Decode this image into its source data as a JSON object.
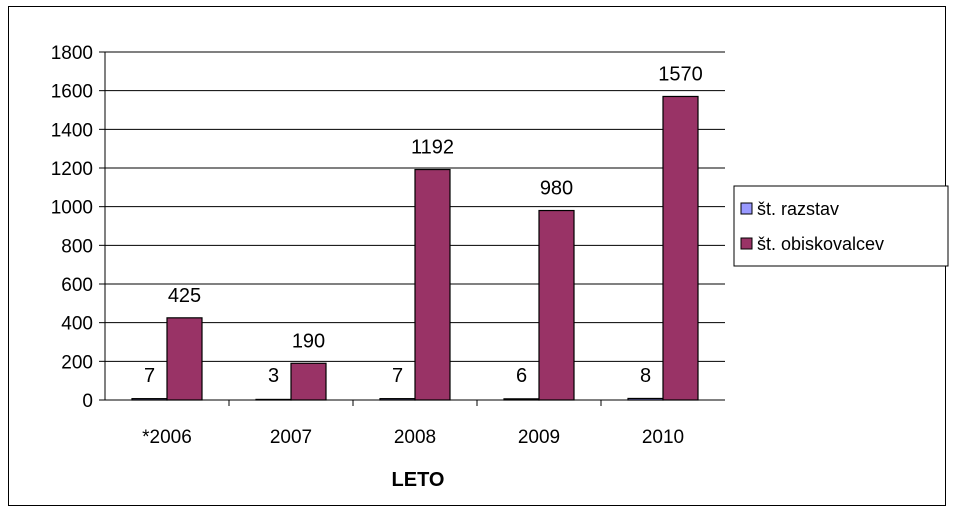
{
  "chart_data": {
    "type": "bar",
    "title": "",
    "xlabel": "LETO",
    "ylabel": "",
    "ylim": [
      0,
      1800
    ],
    "ytick_step": 200,
    "grid": true,
    "legend_position": "right",
    "categories": [
      "*2006",
      "2007",
      "2008",
      "2009",
      "2010"
    ],
    "series": [
      {
        "name": "št. razstav",
        "color": "#9999ff",
        "values": [
          7,
          3,
          7,
          6,
          8
        ]
      },
      {
        "name": "št. obiskovalcev",
        "color": "#993366",
        "values": [
          425,
          190,
          1192,
          980,
          1570
        ]
      }
    ]
  }
}
